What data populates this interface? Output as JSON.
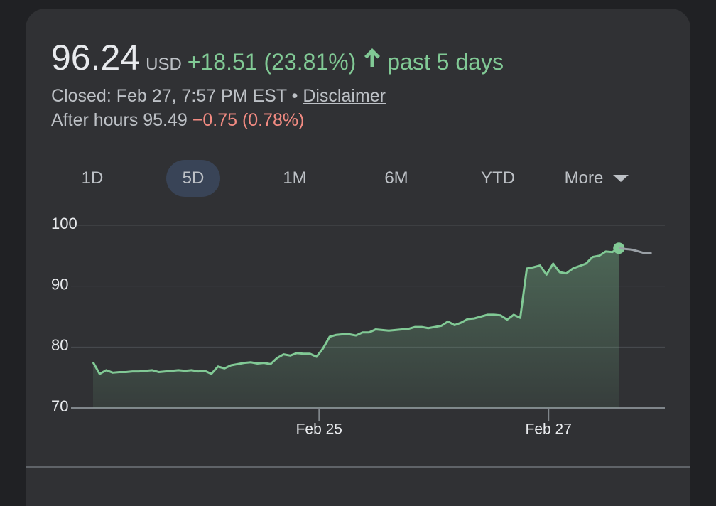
{
  "quote": {
    "price": "96.24",
    "currency": "USD",
    "change": "+18.51 (23.81%)",
    "period": "past 5 days",
    "status": "Closed: Feb 27, 7:57 PM EST",
    "separator": "•",
    "disclaimer": "Disclaimer",
    "after_hours": "After hours 95.49",
    "after_hours_change": "−0.75 (0.78%)"
  },
  "tabs": [
    "1D",
    "5D",
    "1M",
    "6M",
    "YTD",
    "More"
  ],
  "selected_tab": 1,
  "chart_data": {
    "type": "line",
    "series": [
      {
        "color": "#81c995",
        "values": [
          77.5,
          75.6,
          76.2,
          75.8,
          75.9,
          75.9,
          76.0,
          76.0,
          76.1,
          76.2,
          75.9,
          76.0,
          76.1,
          76.2,
          76.1,
          76.2,
          76.0,
          76.1,
          75.6,
          76.8,
          76.5,
          77.0,
          77.2,
          77.4,
          77.5,
          77.3,
          77.4,
          77.2,
          78.2,
          78.8,
          78.6,
          79.0,
          78.9,
          78.9,
          78.4,
          79.8,
          81.7,
          82.0,
          82.1,
          82.1,
          81.9,
          82.4,
          82.4,
          82.9,
          82.8,
          82.7,
          82.8,
          82.9,
          83.0,
          83.3,
          83.3,
          83.1,
          83.3,
          83.5,
          84.2,
          83.6,
          84.0,
          84.6,
          84.7,
          85.0,
          85.3,
          85.3,
          85.2,
          84.5,
          85.3,
          84.8,
          92.9,
          93.1,
          93.4,
          91.9,
          93.7,
          92.3,
          92.1,
          92.9,
          93.3,
          93.7,
          94.8,
          95.0,
          95.7,
          95.6,
          96.24,
          null,
          null,
          null,
          null,
          null
        ]
      },
      {
        "color": "#9aa0a6",
        "values": [
          null,
          null,
          null,
          null,
          null,
          null,
          null,
          null,
          null,
          null,
          null,
          null,
          null,
          null,
          null,
          null,
          null,
          null,
          null,
          null,
          null,
          null,
          null,
          null,
          null,
          null,
          null,
          null,
          null,
          null,
          null,
          null,
          null,
          null,
          null,
          null,
          null,
          null,
          null,
          null,
          null,
          null,
          null,
          null,
          null,
          null,
          null,
          null,
          null,
          null,
          null,
          null,
          null,
          null,
          null,
          null,
          null,
          null,
          null,
          null,
          null,
          null,
          null,
          null,
          null,
          null,
          null,
          null,
          null,
          null,
          null,
          null,
          null,
          null,
          null,
          null,
          null,
          null,
          null,
          null,
          96.24,
          96.1,
          96.0,
          95.7,
          95.4,
          95.5
        ]
      }
    ],
    "xlim": [
      0,
      87
    ],
    "xticks": [
      {
        "value": 34.4,
        "label": "Feb 25"
      },
      {
        "value": 69.3,
        "label": "Feb 27"
      }
    ],
    "ylim": [
      70,
      100
    ],
    "yticks": [
      70,
      80,
      90,
      100
    ],
    "grid": true
  }
}
